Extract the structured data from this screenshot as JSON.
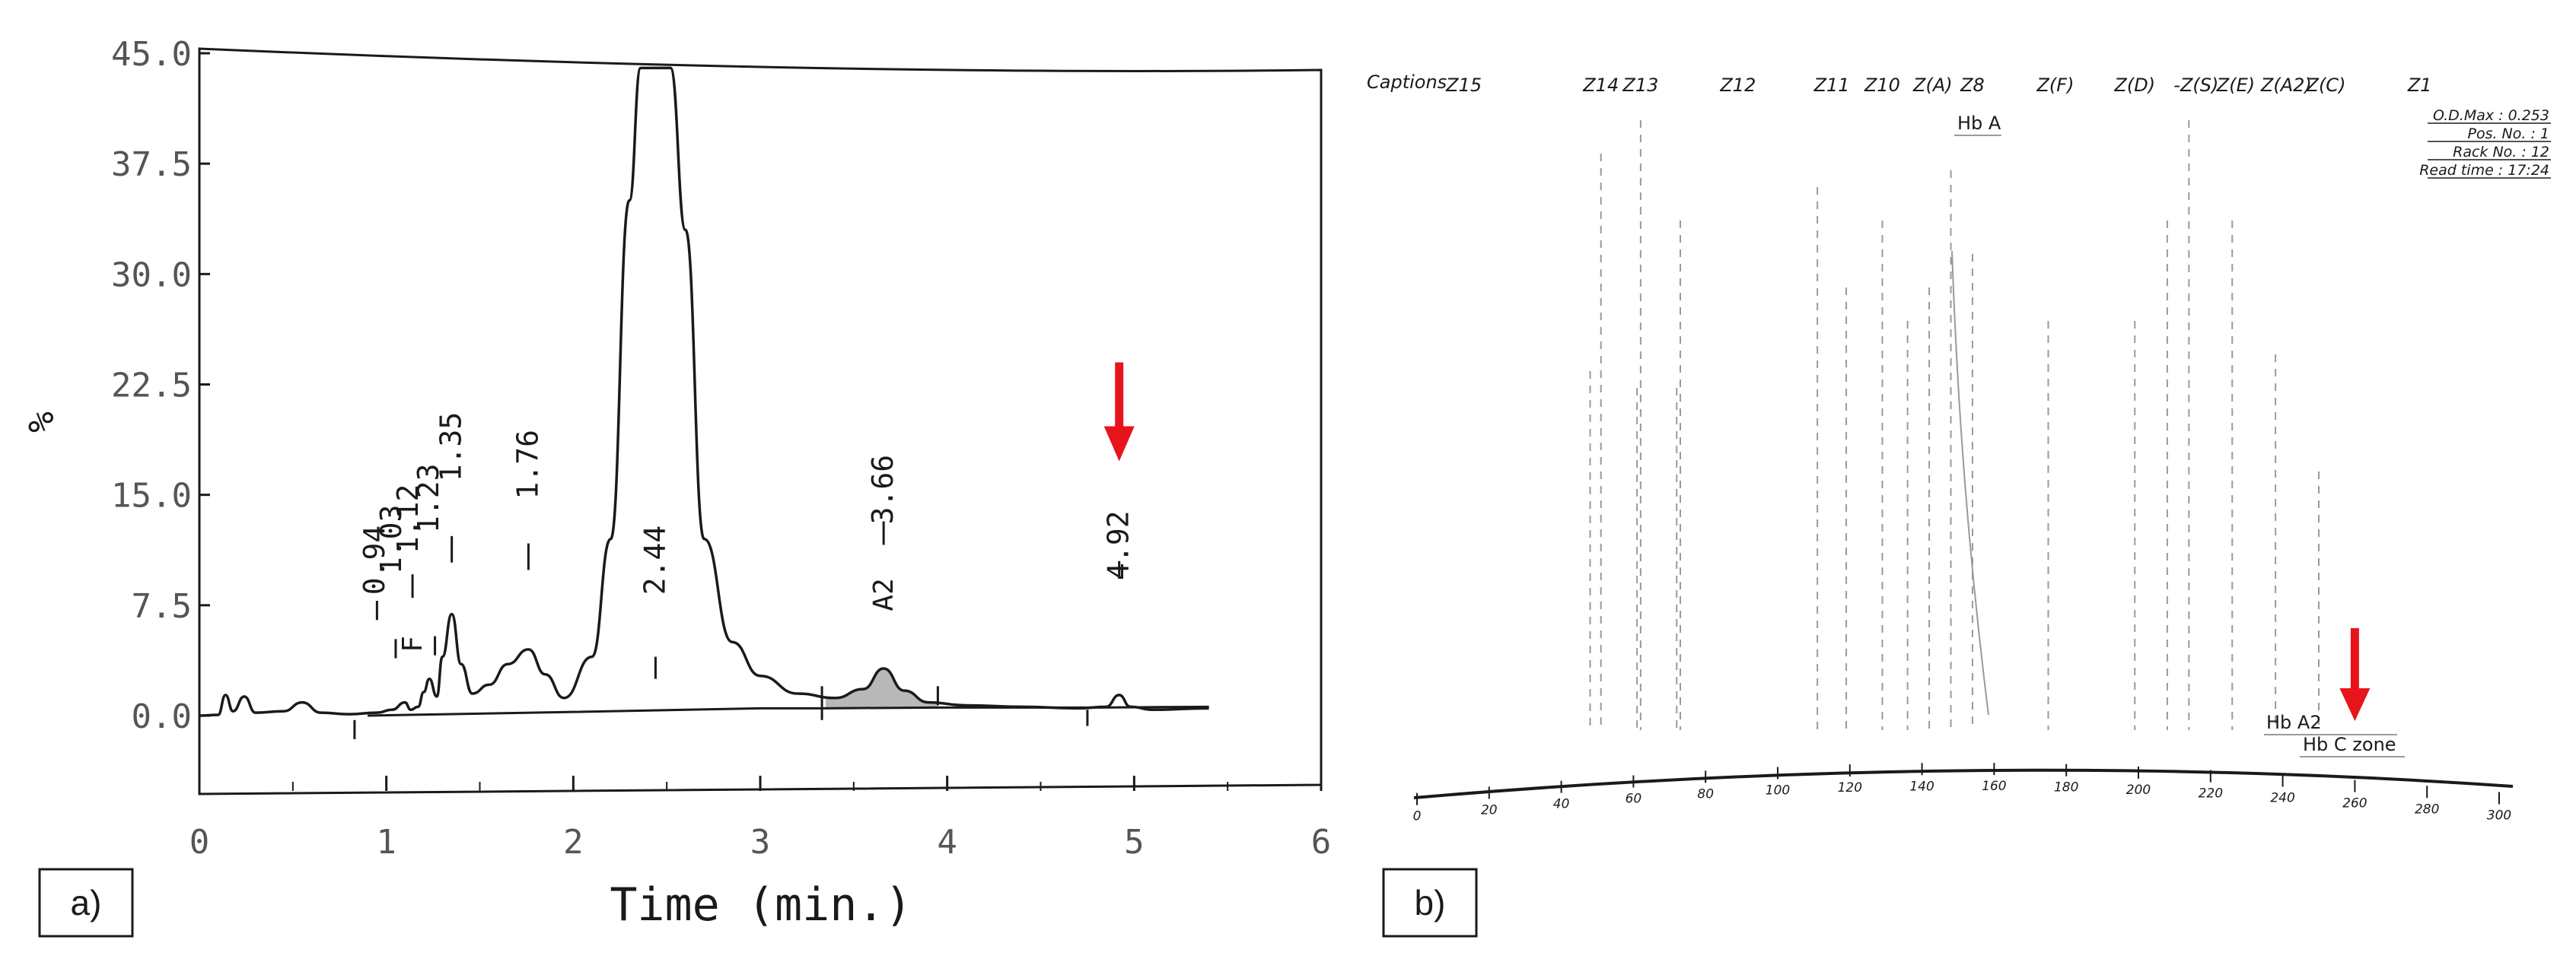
{
  "colors": {
    "ink": "#1a1a1a",
    "arrow": "#e8141c",
    "shade": "#b8b8b8",
    "faint": "#9a9a9a"
  },
  "panel_labels": {
    "a": "a)",
    "b": "b)"
  },
  "chart_data": [
    {
      "type": "line",
      "title": "",
      "xlabel": "Time (min.)",
      "ylabel": "%",
      "xlim": [
        0,
        6
      ],
      "ylim": [
        -2.5,
        45
      ],
      "x_ticks": [
        "0",
        "1",
        "2",
        "3",
        "4",
        "5",
        "6"
      ],
      "y_ticks": [
        "0.0",
        "7.5",
        "15.0",
        "22.5",
        "30.0",
        "37.5",
        "45.0"
      ],
      "grid": false,
      "series": [
        {
          "x": [
            0.0,
            0.1,
            0.14,
            0.18,
            0.24,
            0.3,
            0.45,
            0.55,
            0.65,
            0.8,
            0.95,
            1.03,
            1.1,
            1.13,
            1.17,
            1.2,
            1.23,
            1.27,
            1.3,
            1.35,
            1.4,
            1.46,
            1.55,
            1.65,
            1.76,
            1.85,
            1.95,
            2.1,
            2.2,
            2.3,
            2.36,
            2.44,
            2.52,
            2.6,
            2.7,
            2.85,
            3.0,
            3.2,
            3.4,
            3.55,
            3.66,
            3.77,
            3.9,
            4.1,
            4.4,
            4.7,
            4.85,
            4.92,
            4.98,
            5.1,
            5.4
          ],
          "y": [
            0.0,
            0.05,
            1.4,
            0.3,
            1.3,
            0.2,
            0.3,
            0.9,
            0.2,
            0.1,
            0.2,
            0.4,
            0.9,
            0.4,
            0.6,
            1.6,
            2.5,
            1.3,
            4.0,
            6.9,
            3.5,
            1.5,
            2.1,
            3.5,
            4.5,
            2.8,
            1.2,
            4.0,
            12.0,
            35.0,
            44.0,
            44.0,
            44.0,
            33.0,
            12.0,
            5.0,
            2.7,
            1.5,
            1.2,
            1.8,
            3.2,
            1.7,
            0.9,
            0.7,
            0.6,
            0.5,
            0.6,
            1.4,
            0.6,
            0.4,
            0.5
          ]
        }
      ],
      "shaded_peak": "A2",
      "peak_labels": [
        {
          "text": "0.94",
          "x": 0.94,
          "y": 8.2
        },
        {
          "text": "1.03",
          "x": 1.03,
          "y": 9.6
        },
        {
          "text": "1.12",
          "x": 1.12,
          "y": 11.0
        },
        {
          "text": "1.23",
          "x": 1.23,
          "y": 12.4
        },
        {
          "text": "1.35",
          "x": 1.35,
          "y": 15.9
        },
        {
          "text": "1.76",
          "x": 1.76,
          "y": 14.7
        },
        {
          "text": "2.44",
          "x": 2.44,
          "y": 8.2
        },
        {
          "text": "3.66",
          "x": 3.66,
          "y": 13.0
        },
        {
          "text": "4.92",
          "x": 4.92,
          "y": 9.2
        }
      ],
      "peak_names": [
        {
          "text": "F",
          "x": 1.14,
          "y": 4.3
        },
        {
          "text": "A2",
          "x": 3.66,
          "y": 7.1
        }
      ],
      "arrow_at": {
        "x": 4.92,
        "y": 24.0
      }
    },
    {
      "type": "line",
      "title": "",
      "captions_label": "Captions",
      "zones": [
        "Z15",
        "Z14",
        "Z13",
        "Z12",
        "Z11",
        "Z10",
        "Z(A)",
        "Z8",
        "Z(F)",
        "Z(D)",
        "-Z(S)",
        "Z(E)",
        "Z(A2)",
        "Z(C)",
        "Z1"
      ],
      "zone_positions": [
        13,
        51,
        62,
        89,
        115,
        129,
        143,
        154,
        177,
        199,
        216,
        227,
        241,
        252,
        278
      ],
      "annotations": [
        "Hb A",
        "Hb A2",
        "Hb C zone"
      ],
      "info": [
        "O.D.Max : 0.253",
        "Pos. No. : 1",
        "Rack No. : 12",
        "Read time : 17:24"
      ],
      "xlim": [
        0,
        300
      ],
      "x_ticks": [
        "0",
        "20",
        "40",
        "60",
        "80",
        "100",
        "120",
        "140",
        "160",
        "180",
        "200",
        "220",
        "240",
        "260",
        "280",
        "300"
      ],
      "arrow_at": {
        "x": 260
      }
    }
  ]
}
